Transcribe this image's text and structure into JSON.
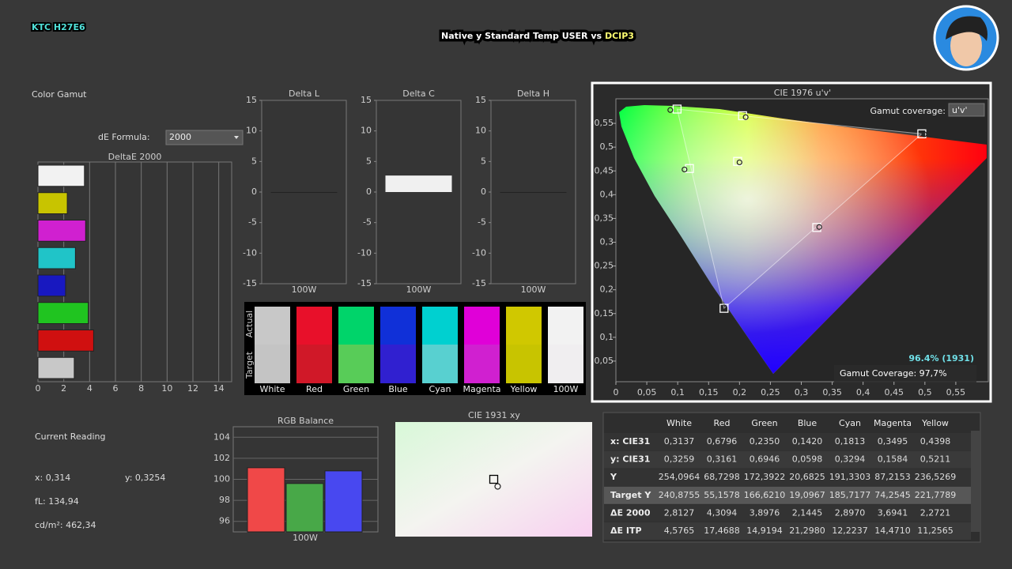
{
  "header": {
    "brand": "KTC H27E6",
    "title_main": "Native y Standard Temp USER vs",
    "title_highlight": "DCIP3"
  },
  "color_gamut": {
    "title": "Color Gamut",
    "de_formula_label": "dE Formula:",
    "de_formula_value": "2000"
  },
  "deltae_chart": {
    "type": "bar",
    "title": "DeltaE 2000",
    "values": [
      3.6,
      2.27,
      3.69,
      2.9,
      2.14,
      3.9,
      4.31,
      2.81
    ],
    "colors": [
      "#f2f2f2",
      "#c8c400",
      "#d020d0",
      "#20c4c8",
      "#1818c0",
      "#20c420",
      "#d01010",
      "#c8c8c8"
    ],
    "xlim": [
      0,
      15
    ],
    "xticks": [
      0,
      2,
      4,
      6,
      8,
      10,
      12,
      14
    ],
    "grid": true
  },
  "delta_charts": [
    {
      "type": "bar",
      "title": "Delta L",
      "categories": [
        "100W"
      ],
      "values": [
        0
      ],
      "ylim": [
        -15,
        15
      ],
      "yticks": [
        -15,
        -10,
        -5,
        0,
        5,
        10,
        15
      ]
    },
    {
      "type": "bar",
      "title": "Delta C",
      "categories": [
        "100W"
      ],
      "values": [
        2.7
      ],
      "ylim": [
        -15,
        15
      ],
      "yticks": [
        -15,
        -10,
        -5,
        0,
        5,
        10,
        15
      ]
    },
    {
      "type": "bar",
      "title": "Delta H",
      "categories": [
        "100W"
      ],
      "values": [
        0
      ],
      "ylim": [
        -15,
        15
      ],
      "yticks": [
        -15,
        -10,
        -5,
        0,
        5,
        10,
        15
      ]
    }
  ],
  "swatches": {
    "actual_label": "Actual",
    "target_label": "Target",
    "names": [
      "White",
      "Red",
      "Green",
      "Blue",
      "Cyan",
      "Magenta",
      "Yellow",
      "100W"
    ],
    "actual_colors": [
      "#c8c8c8",
      "#e8102a",
      "#00d46a",
      "#1030d8",
      "#00d0d0",
      "#e000d8",
      "#d0c800",
      "#f2f2f2"
    ],
    "target_colors": [
      "#c4c4c4",
      "#d01828",
      "#58cc58",
      "#3020d0",
      "#58d0d0",
      "#d020d0",
      "#c8c400",
      "#f0eef0"
    ]
  },
  "cie1976": {
    "type": "scatter",
    "title": "CIE 1976 u'v'",
    "coverage_label": "Gamut coverage:",
    "coverage_option": "u'v'",
    "coverage_1931": "96.4% (1931)",
    "gamut_coverage": "Gamut Coverage: 97,7%",
    "xlim": [
      0,
      0.6
    ],
    "ylim": [
      0,
      0.6
    ],
    "xticks": [
      0,
      {
        "value": 0.05,
        "label": "0,05"
      },
      {
        "value": 0.1,
        "label": "0,1"
      },
      {
        "value": 0.15,
        "label": "0,15"
      },
      {
        "value": 0.2,
        "label": "0,2"
      },
      {
        "value": 0.25,
        "label": "0,25"
      },
      {
        "value": 0.3,
        "label": "0,3"
      },
      {
        "value": 0.35,
        "label": "0,35"
      },
      {
        "value": 0.4,
        "label": "0,4"
      },
      {
        "value": 0.45,
        "label": "0,45"
      },
      {
        "value": 0.5,
        "label": "0,5"
      },
      {
        "value": 0.55,
        "label": "0,55"
      }
    ],
    "yticks": [
      {
        "value": 0.05,
        "label": "0,05"
      },
      {
        "value": 0.1,
        "label": "0,1"
      },
      {
        "value": 0.15,
        "label": "0,15"
      },
      {
        "value": 0.2,
        "label": "0,2"
      },
      {
        "value": 0.25,
        "label": "0,25"
      },
      {
        "value": 0.3,
        "label": "0,3"
      },
      {
        "value": 0.35,
        "label": "0,35"
      },
      {
        "value": 0.4,
        "label": "0,4"
      },
      {
        "value": 0.45,
        "label": "0,45"
      },
      {
        "value": 0.5,
        "label": "0,5"
      },
      {
        "value": 0.55,
        "label": "0,55"
      }
    ],
    "targets": {
      "u": [
        0.197,
        0.495,
        0.099,
        0.175,
        0.119,
        0.325,
        0.205
      ],
      "v": [
        0.47,
        0.528,
        0.58,
        0.161,
        0.455,
        0.331,
        0.566
      ]
    },
    "measured": {
      "u": [
        0.2,
        0.499,
        0.088,
        0.175,
        0.111,
        0.329,
        0.21
      ],
      "v": [
        0.468,
        0.527,
        0.578,
        0.163,
        0.453,
        0.332,
        0.563
      ]
    }
  },
  "current_reading": {
    "title": "Current Reading",
    "x": "x: 0,314",
    "y": "y: 0,3254",
    "fl": "fL: 134,94",
    "luminance": "cd/m²: 462,34"
  },
  "rgb_balance": {
    "type": "bar",
    "title": "RGB Balance",
    "categories": [
      "100W"
    ],
    "series": [
      {
        "color": "#f04848",
        "values": [
          101.1
        ]
      },
      {
        "color": "#48a848",
        "values": [
          99.6
        ]
      },
      {
        "color": "#4848f0",
        "values": [
          100.8
        ]
      }
    ],
    "ylim": [
      95,
      105
    ],
    "yticks": [
      96,
      98,
      100,
      102,
      104
    ],
    "grid": true
  },
  "cie1931": {
    "type": "scatter",
    "title": "CIE 1931 xy",
    "xlim": [
      0.2877,
      0.3377
    ],
    "ylim": [
      0.304,
      0.354
    ],
    "target": {
      "x": 0.3127,
      "y": 0.329
    },
    "measured": {
      "x": 0.3137,
      "y": 0.3259
    }
  },
  "table": {
    "columns": [
      "White",
      "Red",
      "Green",
      "Blue",
      "Cyan",
      "Magenta",
      "Yellow"
    ],
    "rows": [
      {
        "label": "x: CIE31",
        "cells": [
          "0,3137",
          "0,6796",
          "0,2350",
          "0,1420",
          "0,1813",
          "0,3495",
          "0,4398"
        ]
      },
      {
        "label": "y: CIE31",
        "cells": [
          "0,3259",
          "0,3161",
          "0,6946",
          "0,0598",
          "0,3294",
          "0,1584",
          "0,5211"
        ]
      },
      {
        "label": "Y",
        "cells": [
          "254,0964",
          "68,7298",
          "172,3922",
          "20,6825",
          "191,3303",
          "87,2153",
          "236,5269"
        ]
      },
      {
        "label": "Target Y",
        "cells": [
          "240,8755",
          "55,1578",
          "166,6210",
          "19,0967",
          "185,7177",
          "74,2545",
          "221,7789"
        ]
      },
      {
        "label": "ΔE 2000",
        "cells": [
          "2,8127",
          "4,3094",
          "3,8976",
          "2,1445",
          "2,8970",
          "3,6941",
          "2,2721"
        ]
      },
      {
        "label": "ΔE ITP",
        "cells": [
          "4,5765",
          "17,4688",
          "14,9194",
          "21,2980",
          "12,2237",
          "14,4710",
          "11,2565"
        ]
      }
    ]
  }
}
